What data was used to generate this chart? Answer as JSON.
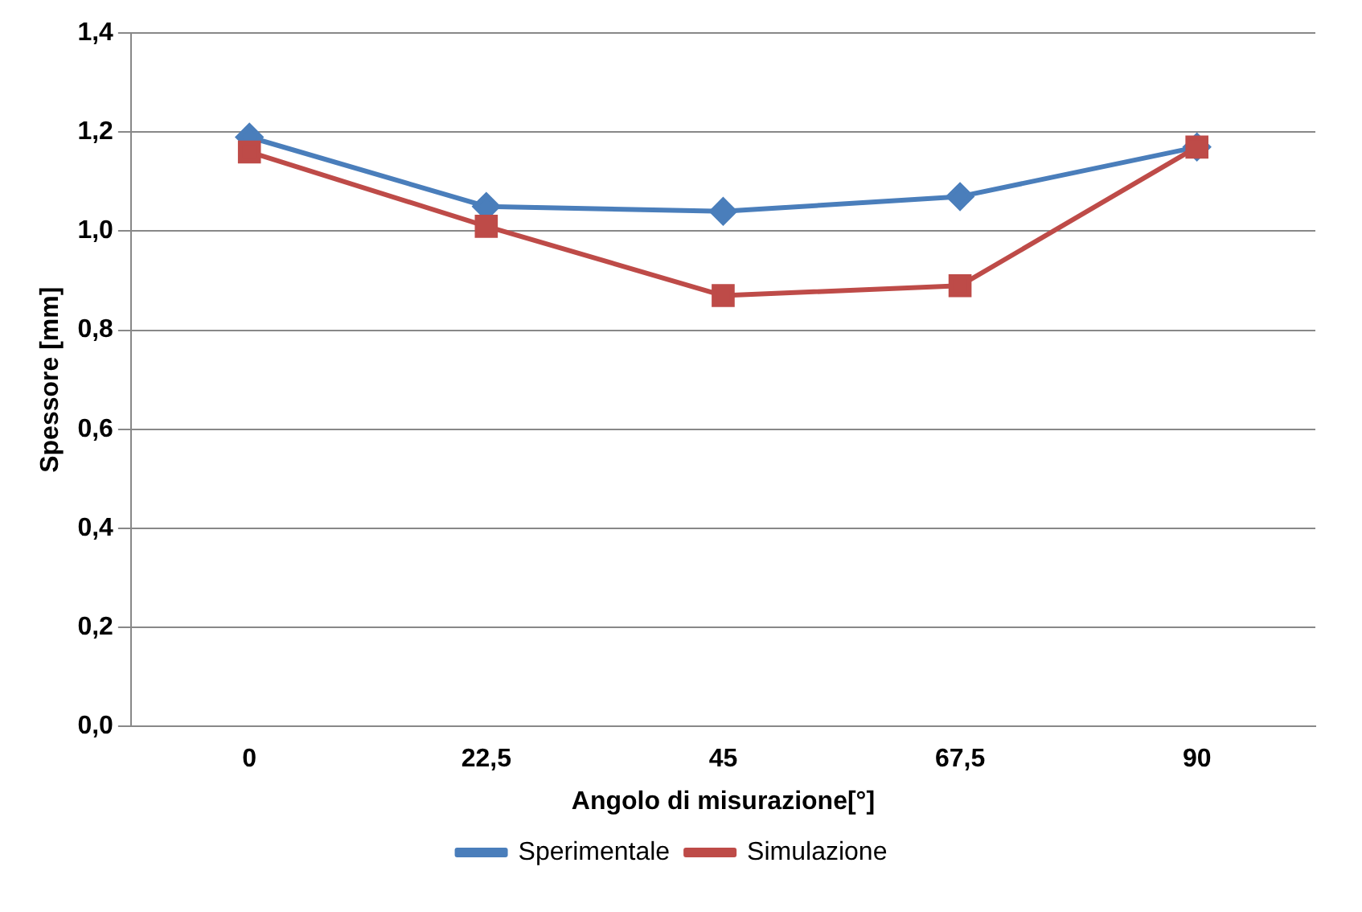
{
  "chart_data": {
    "type": "line",
    "xlabel": "Angolo di misurazione[°]",
    "ylabel": "Spessore [mm]",
    "categories": [
      "0",
      "22,5",
      "45",
      "67,5",
      "90"
    ],
    "series": [
      {
        "name": "Sperimentale",
        "color": "#4a7ebb",
        "marker": "diamond",
        "values": [
          1.19,
          1.05,
          1.04,
          1.07,
          1.17
        ]
      },
      {
        "name": "Simulazione",
        "color": "#be4b48",
        "marker": "square",
        "values": [
          1.16,
          1.01,
          0.87,
          0.89,
          1.17
        ]
      }
    ],
    "ylim": [
      0,
      1.4
    ],
    "yticks": [
      {
        "value": 0,
        "label": "0,0"
      },
      {
        "value": 0.2,
        "label": "0,2"
      },
      {
        "value": 0.4,
        "label": "0,4"
      },
      {
        "value": 0.6,
        "label": "0,6"
      },
      {
        "value": 0.8,
        "label": "0,8"
      },
      {
        "value": 1,
        "label": "1,0"
      },
      {
        "value": 1.2,
        "label": "1,2"
      },
      {
        "value": 1.4,
        "label": "1,4"
      }
    ],
    "grid": "y",
    "legend": "bottom",
    "line_style": "solid"
  }
}
